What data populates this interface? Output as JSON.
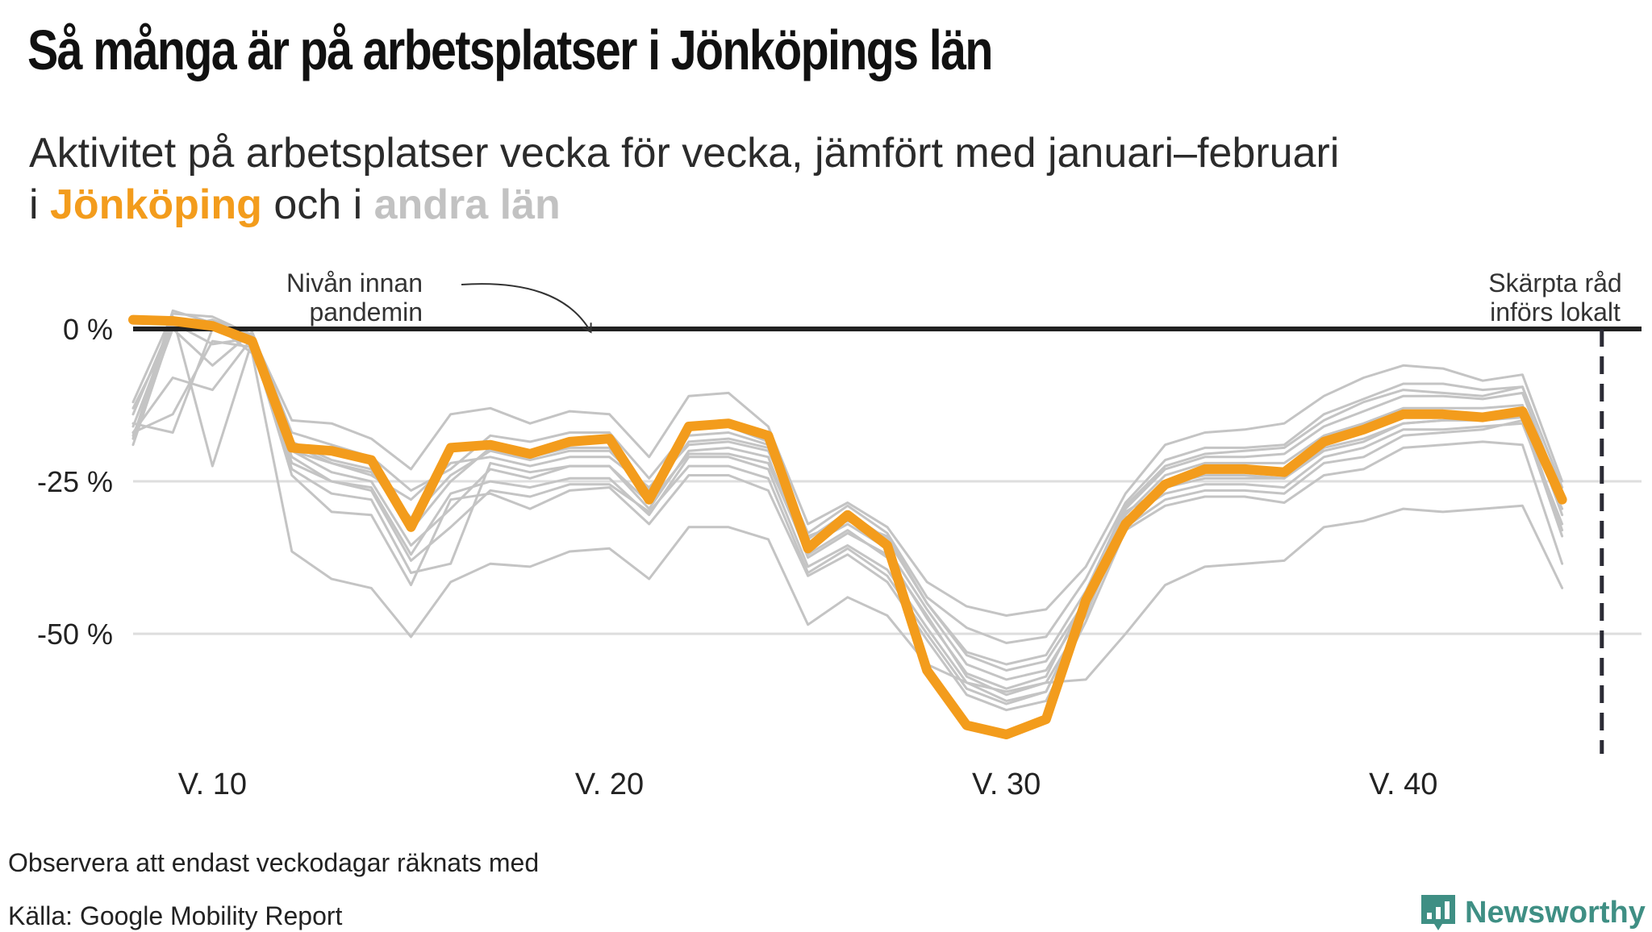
{
  "header": {
    "title": "Så många är på arbetsplatser i Jönköpings län",
    "subtitle_line1": "Aktivitet på arbetsplatser vecka för vecka, jämfört med januari–februari",
    "subtitle_prefix": "i ",
    "subtitle_highlight_main": "Jönköping",
    "subtitle_mid": " och i ",
    "subtitle_highlight_other": "andra län"
  },
  "footer": {
    "note": "Observera att endast veckodagar räknats med",
    "source": "Källa: Google Mobility Report",
    "brand": "Newsworthy"
  },
  "colors": {
    "main": "#f39c1c",
    "other": "#c4c4c4",
    "baseline": "#222222",
    "grid": "#dedede",
    "event_line": "#2b2b35",
    "brand": "#3f8f84"
  },
  "chart_data": {
    "type": "line",
    "xlabel": "",
    "ylabel": "",
    "x": [
      8,
      9,
      10,
      11,
      12,
      13,
      14,
      15,
      16,
      17,
      18,
      19,
      20,
      21,
      22,
      23,
      24,
      25,
      26,
      27,
      28,
      29,
      30,
      31,
      32,
      33,
      34,
      35,
      36,
      37,
      38,
      39,
      40,
      41,
      42,
      43,
      44
    ],
    "xlim": [
      8,
      46
    ],
    "ylim": [
      -71,
      7
    ],
    "x_ticks": [
      10,
      20,
      30,
      40
    ],
    "x_tick_labels": [
      "V. 10",
      "V. 20",
      "V. 30",
      "V. 40"
    ],
    "y_ticks": [
      0,
      -25,
      -50
    ],
    "y_tick_labels": [
      "0 %",
      "-25 %",
      "-50 %"
    ],
    "grid": "horizontal",
    "legend": "none",
    "series": [
      {
        "name": "Jönköping",
        "values": [
          1.5,
          1.3,
          0.5,
          -2,
          -19.5,
          -20,
          -21.5,
          -32.5,
          -19.5,
          -19,
          -20.5,
          -18.5,
          -18,
          -28,
          -16,
          -15.5,
          -17.5,
          -36,
          -30.5,
          -35.5,
          -56,
          -65,
          -66.5,
          -64,
          -44.5,
          -32,
          -25.5,
          -23,
          -23,
          -23.5,
          -18.5,
          -16.5,
          -14,
          -14,
          -14.5,
          -13.5,
          -28
        ]
      },
      {
        "values": [
          -12,
          2.5,
          2,
          -1,
          -15,
          -15.5,
          -18,
          -23,
          -14,
          -13,
          -15.5,
          -13.5,
          -14,
          -21,
          -11,
          -10.5,
          -16,
          -32,
          -28.5,
          -32.5,
          -41.5,
          -45.5,
          -47,
          -46,
          -39,
          -27,
          -19,
          -17,
          -16.5,
          -15.5,
          -11,
          -8,
          -6,
          -6.5,
          -8.5,
          -7.5,
          -25
        ]
      },
      {
        "values": [
          -18,
          3,
          1,
          -4,
          -36.5,
          -41,
          -42.5,
          -50.5,
          -41.5,
          -38.5,
          -39,
          -36.5,
          -36,
          -41,
          -32.5,
          -32.5,
          -34.5,
          -48.5,
          -44,
          -47,
          -55,
          -58,
          -59.5,
          -58,
          -57.5,
          -50,
          -42,
          -39,
          -38.5,
          -38,
          -32.5,
          -31.5,
          -29.5,
          -30,
          -29.5,
          -29,
          -42.5
        ]
      },
      {
        "values": [
          -17,
          -8,
          -10,
          -1.5,
          -20,
          -22,
          -24,
          -28,
          -22,
          -21,
          -22.5,
          -21,
          -21,
          -26,
          -19,
          -18.5,
          -20,
          -34,
          -31.5,
          -34,
          -45,
          -53,
          -55,
          -53.5,
          -43,
          -29,
          -22.5,
          -20.5,
          -20,
          -19.5,
          -15,
          -12,
          -10,
          -10.5,
          -11,
          -9.5,
          -26
        ]
      },
      {
        "values": [
          -17,
          -14,
          -2,
          -3,
          -21,
          -25,
          -26,
          -37,
          -27,
          -25,
          -26,
          -24.5,
          -24.5,
          -30.5,
          -21,
          -21,
          -23,
          -39,
          -35.5,
          -39.5,
          -49,
          -58,
          -61,
          -59.5,
          -46,
          -31,
          -27,
          -25.5,
          -25.5,
          -26,
          -21,
          -19.5,
          -16.5,
          -16.5,
          -16,
          -15.5,
          -32
        ]
      },
      {
        "values": [
          -15.5,
          -17,
          0,
          -1,
          -23,
          -27,
          -28,
          -40,
          -38.5,
          -22,
          -23.5,
          -22.5,
          -22.5,
          -29.5,
          -20,
          -19.5,
          -21,
          -37.5,
          -33.5,
          -37,
          -47.5,
          -56.5,
          -59,
          -57,
          -44,
          -30,
          -26,
          -24.5,
          -24.5,
          -24.5,
          -19.5,
          -18,
          -15.5,
          -15,
          -15,
          -14.5,
          -29.5
        ]
      },
      {
        "values": [
          -19,
          0.5,
          0,
          -2.5,
          -24,
          -30,
          -30.5,
          -42,
          -28,
          -27,
          -29.5,
          -26.5,
          -26,
          -32,
          -24,
          -24,
          -26.5,
          -40.5,
          -37,
          -41.5,
          -51,
          -60,
          -62.5,
          -61,
          -48,
          -33,
          -29,
          -27.5,
          -27.5,
          -28.5,
          -24,
          -23,
          -19.5,
          -19,
          -18.5,
          -19,
          -38.5
        ]
      },
      {
        "values": [
          -18,
          2,
          -22.5,
          -2,
          -22,
          -25,
          -26.5,
          -38,
          -32.5,
          -26.5,
          -27.5,
          -25.5,
          -25.5,
          -30,
          -22.5,
          -22.5,
          -24.5,
          -40,
          -36,
          -40.5,
          -50,
          -59,
          -61.5,
          -59.5,
          -46.5,
          -32.5,
          -28,
          -26.5,
          -26.5,
          -27,
          -22,
          -21,
          -17.5,
          -17,
          -16.5,
          -15,
          -34
        ]
      },
      {
        "values": [
          -13,
          0,
          -6,
          -0.5,
          -17,
          -19,
          -21,
          -26.5,
          -23,
          -17.5,
          -18.5,
          -17,
          -17,
          -24.5,
          -16.5,
          -16,
          -18.5,
          -33.5,
          -29,
          -33.5,
          -44,
          -49,
          -51.5,
          -50.5,
          -41,
          -28.5,
          -21.5,
          -19.5,
          -19.5,
          -19,
          -14,
          -11.5,
          -9,
          -9,
          -10,
          -9.5,
          -26
        ]
      },
      {
        "values": [
          -16,
          1,
          -2.5,
          -1.5,
          -18.5,
          -21.5,
          -23,
          -33,
          -25,
          -19.5,
          -21,
          -19.5,
          -19.5,
          -27,
          -18.5,
          -18,
          -19.5,
          -35.5,
          -32,
          -36,
          -46,
          -55,
          -57.5,
          -56,
          -45.5,
          -30.5,
          -24,
          -22,
          -22,
          -22,
          -17.5,
          -15.5,
          -13,
          -13,
          -13,
          -12.5,
          -30.5
        ]
      },
      {
        "values": [
          -17.5,
          0,
          1.5,
          -1,
          -20,
          -23.5,
          -25,
          -35.5,
          -29.5,
          -23,
          -24.5,
          -22.5,
          -22.5,
          -28.5,
          -20.5,
          -20.5,
          -22,
          -37,
          -33,
          -37.5,
          -47,
          -57,
          -60,
          -58,
          -47,
          -31.5,
          -25.5,
          -24,
          -24,
          -24.5,
          -20,
          -18.5,
          -15.5,
          -15,
          -14.5,
          -14,
          -33
        ]
      },
      {
        "values": [
          -14,
          1.5,
          0.5,
          -2,
          -19,
          -22,
          -23.5,
          -31,
          -24,
          -20,
          -21.5,
          -20,
          -20,
          -26.5,
          -17.5,
          -17,
          -19,
          -34.5,
          -30,
          -34.5,
          -45,
          -53.5,
          -56,
          -54.5,
          -44.5,
          -29.5,
          -23,
          -21,
          -21,
          -20.5,
          -16,
          -13.5,
          -11,
          -11,
          -11.5,
          -10.5,
          -27.5
        ]
      }
    ],
    "annotations": [
      {
        "text_line1": "Nivån innan",
        "text_line2": "pandemin"
      },
      {
        "text_line1": "Skärpta råd",
        "text_line2": "införs lokalt",
        "x": 45
      }
    ]
  }
}
